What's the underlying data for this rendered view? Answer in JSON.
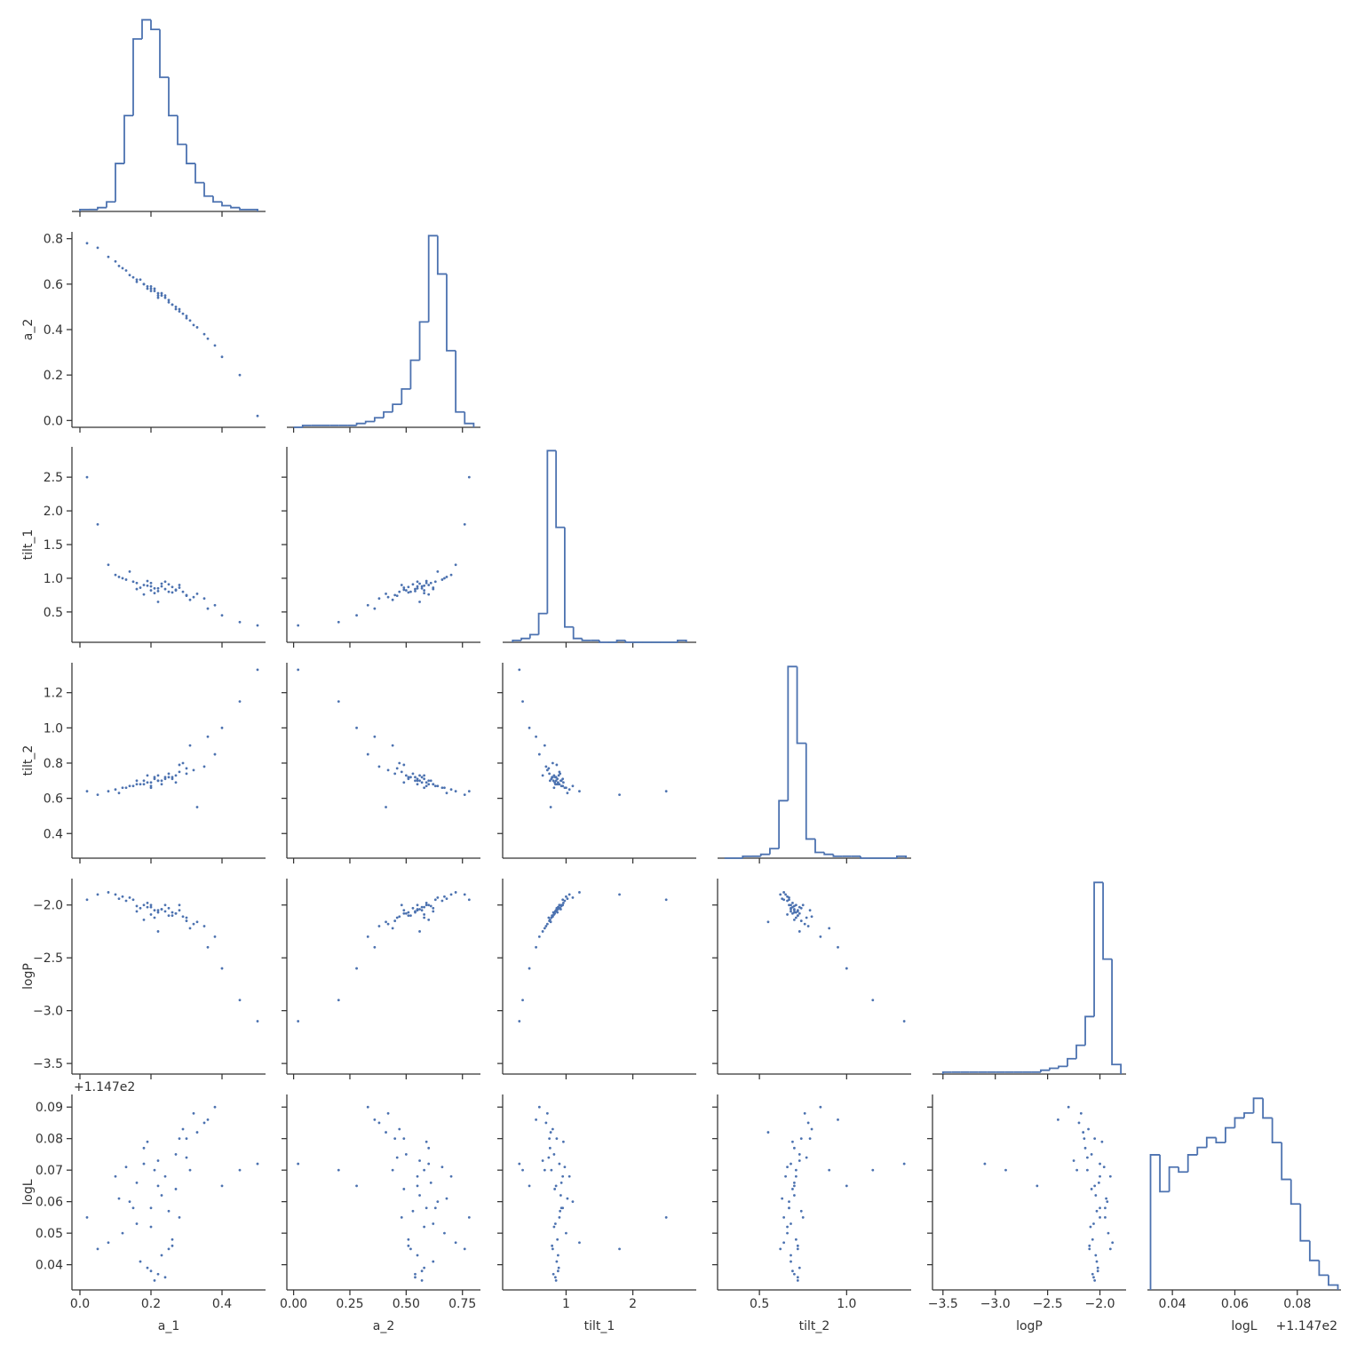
{
  "chart_data": {
    "type": "corner",
    "color": "#4c72b0",
    "variables": [
      {
        "name": "a_1",
        "lim": [
          -0.0225,
          0.5225
        ],
        "xticks": [
          {
            "value": 0,
            "label": "0.0"
          },
          0.2,
          0.4
        ],
        "yticks": [],
        "bins": [
          0.0,
          0.025,
          0.05,
          0.075,
          0.1,
          0.125,
          0.15,
          0.175,
          0.2,
          0.225,
          0.25,
          0.275,
          0.3,
          0.325,
          0.35,
          0.375,
          0.4,
          0.425,
          0.45,
          0.475,
          0.5
        ],
        "counts": [
          1,
          1,
          2,
          5,
          25,
          50,
          90,
          100,
          95,
          70,
          50,
          35,
          25,
          15,
          8,
          5,
          3,
          2,
          1,
          1
        ],
        "samples": [
          0.22,
          0.18,
          0.25,
          0.15,
          0.3,
          0.2,
          0.12,
          0.27,
          0.35,
          0.23,
          0.17,
          0.21,
          0.28,
          0.1,
          0.24,
          0.19,
          0.32,
          0.26,
          0.14,
          0.22,
          0.2,
          0.16,
          0.29,
          0.23,
          0.38,
          0.08,
          0.25,
          0.18,
          0.31,
          0.21,
          0.13,
          0.27,
          0.45,
          0.05,
          0.02,
          0.33,
          0.19,
          0.24,
          0.36,
          0.16,
          0.3,
          0.11,
          0.22,
          0.28,
          0.4,
          0.5,
          0.2,
          0.26
        ]
      },
      {
        "name": "a_2",
        "lim": [
          -0.03,
          0.83
        ],
        "xticks": [
          {
            "value": 0,
            "label": "0.00"
          },
          0.25,
          {
            "value": 0.5,
            "label": "0.50"
          },
          0.75
        ],
        "yticks": [
          {
            "value": 0,
            "label": "0.0"
          },
          0.2,
          0.4,
          0.6,
          0.8
        ],
        "bins": [
          0.0,
          0.04,
          0.08,
          0.12,
          0.16,
          0.2,
          0.24,
          0.28,
          0.32,
          0.36,
          0.4,
          0.44,
          0.48,
          0.52,
          0.56,
          0.6,
          0.64,
          0.68,
          0.72,
          0.76,
          0.8
        ],
        "counts": [
          0,
          1,
          1,
          1,
          1,
          1,
          1,
          2,
          3,
          5,
          8,
          12,
          20,
          35,
          55,
          100,
          80,
          40,
          8,
          2
        ],
        "samples": [
          0.55,
          0.6,
          0.52,
          0.63,
          0.45,
          0.57,
          0.67,
          0.5,
          0.38,
          0.56,
          0.62,
          0.58,
          0.48,
          0.7,
          0.54,
          0.59,
          0.42,
          0.51,
          0.64,
          0.56,
          0.58,
          0.61,
          0.47,
          0.55,
          0.33,
          0.72,
          0.53,
          0.6,
          0.44,
          0.57,
          0.66,
          0.49,
          0.2,
          0.76,
          0.78,
          0.41,
          0.58,
          0.55,
          0.36,
          0.62,
          0.46,
          0.68,
          0.54,
          0.49,
          0.28,
          0.02,
          0.59,
          0.51
        ]
      },
      {
        "name": "tilt_1",
        "lim": [
          0.05,
          2.95
        ],
        "xticks": [
          1,
          2
        ],
        "yticks": [
          0.5,
          {
            "value": 1,
            "label": "1.0"
          },
          1.5,
          {
            "value": 2,
            "label": "2.0"
          },
          2.5
        ],
        "bins": [
          0.2,
          0.33,
          0.46,
          0.59,
          0.72,
          0.85,
          0.98,
          1.11,
          1.24,
          1.37,
          1.5,
          1.63,
          1.76,
          1.89,
          2.02,
          2.15,
          2.28,
          2.41,
          2.54,
          2.67,
          2.8
        ],
        "counts": [
          1,
          2,
          4,
          15,
          100,
          60,
          8,
          2,
          1,
          1,
          0,
          0,
          1,
          0,
          0,
          0,
          0,
          0,
          0,
          1
        ],
        "samples": [
          0.85,
          0.9,
          0.8,
          0.95,
          0.75,
          0.88,
          1.0,
          0.82,
          0.7,
          0.92,
          0.86,
          0.78,
          0.9,
          1.05,
          0.84,
          0.96,
          0.72,
          0.87,
          1.1,
          0.65,
          0.82,
          0.93,
          0.8,
          0.88,
          0.6,
          1.2,
          0.91,
          0.76,
          0.68,
          0.85,
          0.98,
          0.83,
          0.35,
          1.8,
          2.5,
          0.77,
          0.89,
          0.95,
          0.55,
          0.84,
          0.74,
          1.02,
          0.81,
          0.86,
          0.45,
          0.3,
          0.93,
          0.79
        ]
      },
      {
        "name": "tilt_2",
        "lim": [
          0.26,
          1.37
        ],
        "xticks": [
          0.5,
          {
            "value": 1,
            "label": "1.0"
          }
        ],
        "yticks": [
          0.4,
          0.6,
          0.8,
          {
            "value": 1,
            "label": "1.0"
          },
          1.2
        ],
        "bins": [
          0.3,
          0.352,
          0.404,
          0.456,
          0.508,
          0.56,
          0.612,
          0.664,
          0.716,
          0.768,
          0.82,
          0.872,
          0.924,
          0.976,
          1.028,
          1.08,
          1.132,
          1.184,
          1.236,
          1.288,
          1.34
        ],
        "counts": [
          0,
          0,
          1,
          1,
          2,
          5,
          30,
          100,
          60,
          10,
          3,
          2,
          1,
          1,
          1,
          0,
          0,
          0,
          0,
          1
        ],
        "samples": [
          0.7,
          0.68,
          0.72,
          0.67,
          0.74,
          0.69,
          0.66,
          0.73,
          0.78,
          0.7,
          0.68,
          0.71,
          0.75,
          0.65,
          0.72,
          0.69,
          0.76,
          0.71,
          0.67,
          0.73,
          0.66,
          0.7,
          0.8,
          0.68,
          0.85,
          0.64,
          0.74,
          0.7,
          0.9,
          0.72,
          0.66,
          0.69,
          1.15,
          0.62,
          0.64,
          0.55,
          0.73,
          0.71,
          0.95,
          0.68,
          0.77,
          0.63,
          0.7,
          0.79,
          1.0,
          1.33,
          0.67,
          0.72
        ]
      },
      {
        "name": "logP",
        "lim": [
          -3.6,
          -1.75
        ],
        "xticks": [
          {
            "value": -3.5,
            "label": "−3.5"
          },
          {
            "value": -3,
            "label": "−3.0"
          },
          {
            "value": -2.5,
            "label": "−2.5"
          },
          {
            "value": -2,
            "label": "−2.0"
          }
        ],
        "yticks": [
          {
            "value": -3.5,
            "label": "−3.5"
          },
          {
            "value": -3,
            "label": "−3.0"
          },
          {
            "value": -2.5,
            "label": "−2.5"
          },
          {
            "value": -2,
            "label": "−2.0"
          }
        ],
        "bins": [
          -3.5,
          -3.415,
          -3.33,
          -3.245,
          -3.16,
          -3.075,
          -2.99,
          -2.905,
          -2.82,
          -2.735,
          -2.65,
          -2.565,
          -2.48,
          -2.395,
          -2.31,
          -2.225,
          -2.14,
          -2.055,
          -1.97,
          -1.885,
          -1.8
        ],
        "counts": [
          1,
          1,
          1,
          1,
          1,
          1,
          1,
          1,
          1,
          1,
          1,
          2,
          3,
          4,
          8,
          15,
          30,
          100,
          60,
          5
        ],
        "samples": [
          -2.05,
          -2.0,
          -2.1,
          -1.95,
          -2.15,
          -2.02,
          -1.92,
          -2.08,
          -2.2,
          -2.04,
          -2.03,
          -2.12,
          -2.0,
          -1.9,
          -2.06,
          -1.98,
          -2.18,
          -2.07,
          -1.93,
          -2.25,
          -2.09,
          -2.01,
          -2.11,
          -2.04,
          -2.3,
          -1.88,
          -2.03,
          -2.14,
          -2.22,
          -2.05,
          -1.96,
          -2.08,
          -2.9,
          -1.9,
          -1.95,
          -2.16,
          -2.02,
          -2.0,
          -2.4,
          -2.06,
          -2.12,
          -1.94,
          -2.07,
          -2.05,
          -2.6,
          -3.1,
          -2.0,
          -2.1
        ]
      },
      {
        "name": "logL",
        "offset": "+1.147e2",
        "lim": [
          0.032,
          0.094
        ],
        "xticks": [
          0.04,
          0.06,
          0.08
        ],
        "yticks": [
          0.04,
          0.05,
          0.06,
          0.07,
          0.08,
          0.09
        ],
        "bins": [
          0.033,
          0.036,
          0.039,
          0.042,
          0.045,
          0.048,
          0.051,
          0.054,
          0.057,
          0.06,
          0.063,
          0.066,
          0.069,
          0.072,
          0.075,
          0.078,
          0.081,
          0.084,
          0.087,
          0.09,
          0.093
        ],
        "counts": [
          55,
          40,
          50,
          48,
          55,
          58,
          62,
          60,
          66,
          70,
          72,
          78,
          70,
          60,
          45,
          35,
          20,
          12,
          6,
          2
        ],
        "samples": [
          0.065,
          0.072,
          0.045,
          0.058,
          0.08,
          0.038,
          0.05,
          0.075,
          0.085,
          0.062,
          0.041,
          0.07,
          0.055,
          0.068,
          0.036,
          0.079,
          0.088,
          0.048,
          0.06,
          0.073,
          0.052,
          0.066,
          0.083,
          0.043,
          0.09,
          0.047,
          0.057,
          0.077,
          0.07,
          0.035,
          0.071,
          0.064,
          0.07,
          0.045,
          0.055,
          0.082,
          0.039,
          0.068,
          0.086,
          0.053,
          0.074,
          0.061,
          0.037,
          0.08,
          0.065,
          0.072,
          0.058,
          0.046
        ]
      }
    ]
  }
}
